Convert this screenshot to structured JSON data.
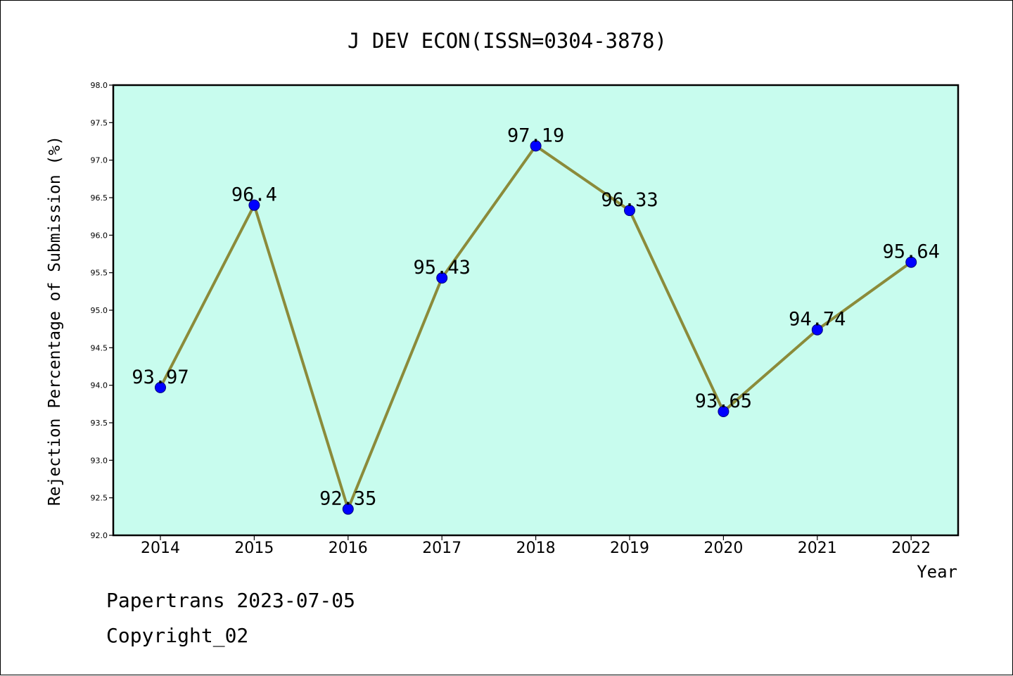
{
  "chart_data": {
    "type": "line",
    "title": "J DEV ECON(ISSN=0304-3878)",
    "xlabel": "Year",
    "ylabel": "Rejection Percentage of Submission (%)",
    "categories": [
      "2014",
      "2015",
      "2016",
      "2017",
      "2018",
      "2019",
      "2020",
      "2021",
      "2022"
    ],
    "values": [
      93.97,
      96.4,
      92.35,
      95.43,
      97.19,
      96.33,
      93.65,
      94.74,
      95.64
    ],
    "data_labels": [
      "93.97",
      "96.4",
      "92.35",
      "95.43",
      "97.19",
      "96.33",
      "93.65",
      "94.74",
      "95.64"
    ],
    "ylim": [
      92.0,
      98.0
    ],
    "yticks": [
      "92.0",
      "92.5",
      "93.0",
      "93.5",
      "94.0",
      "94.5",
      "95.0",
      "95.5",
      "96.0",
      "96.5",
      "97.0",
      "97.5",
      "98.0"
    ],
    "grid": false,
    "legend": "none",
    "colors": {
      "plot_background": "#c8fcee",
      "line": "#8b8b3a",
      "marker": "#0000ff",
      "marker_edge": "#00007a"
    }
  },
  "footer": {
    "line1": "Papertrans 2023-07-05",
    "line2": "Copyright_02"
  }
}
